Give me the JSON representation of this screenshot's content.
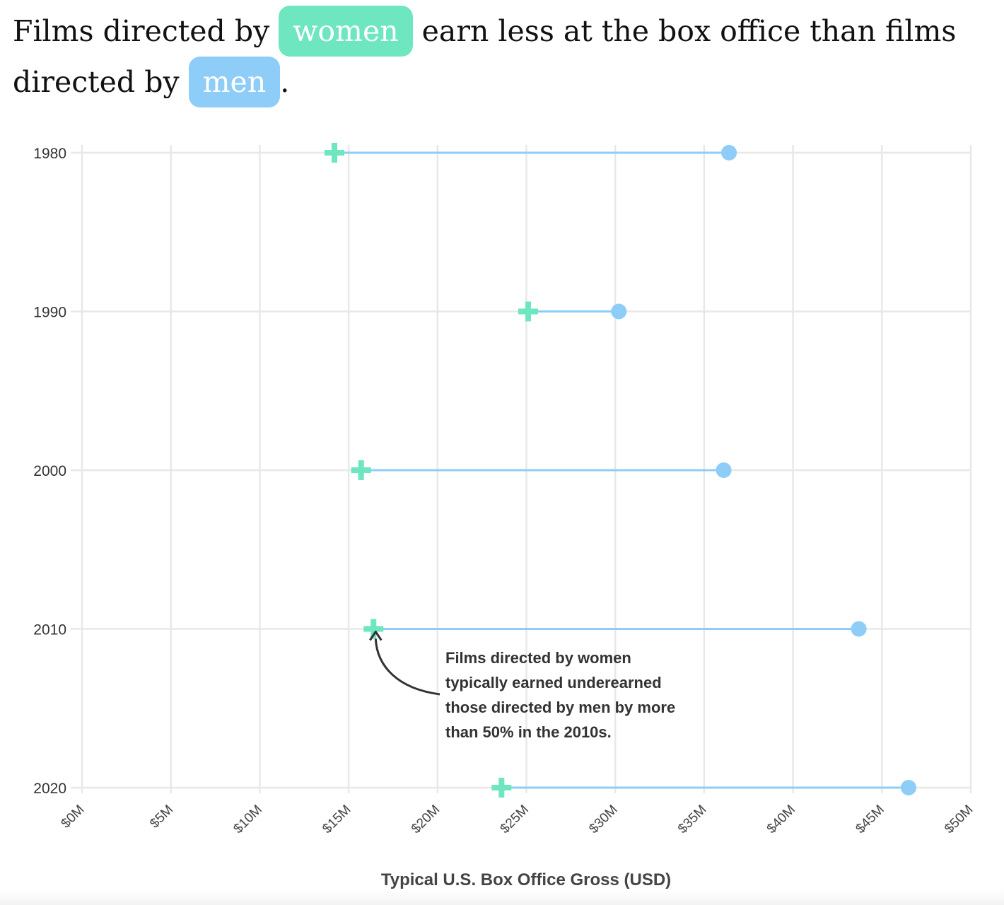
{
  "headline": {
    "part1": "Films directed by",
    "women_label": "women",
    "part2": "earn less at the box office than films directed by",
    "men_label": "men",
    "part3": "."
  },
  "colors": {
    "women": "#6ee6c0",
    "men": "#8ecdf8",
    "grid": "#e8e8e8",
    "annotation": "#333333"
  },
  "chart_data": {
    "type": "dumbbell",
    "title": "Films directed by women earn less at the box office than films directed by men.",
    "xlabel": "Typical U.S. Box Office Gross (USD)",
    "ylabel": "",
    "xlim": [
      0,
      50
    ],
    "x_ticks": [
      0,
      5,
      10,
      15,
      20,
      25,
      30,
      35,
      40,
      45,
      50
    ],
    "x_tick_labels": [
      "$0M",
      "$5M",
      "$10M",
      "$15M",
      "$20M",
      "$25M",
      "$30M",
      "$35M",
      "$40M",
      "$45M",
      "$50M"
    ],
    "categories": [
      "1980",
      "1990",
      "2000",
      "2010",
      "2020"
    ],
    "series": [
      {
        "name": "women",
        "marker": "plus",
        "values": [
          14.2,
          25.1,
          15.7,
          16.4,
          23.6
        ]
      },
      {
        "name": "men",
        "marker": "circle",
        "values": [
          36.4,
          30.2,
          36.1,
          43.7,
          46.5
        ]
      }
    ],
    "annotation": {
      "lines": [
        "Films directed by women",
        "typically earned underearned",
        "those directed by men by more",
        "than 50% in the 2010s."
      ],
      "target_category": "2010",
      "target_value": 16.4
    },
    "grid": true
  }
}
